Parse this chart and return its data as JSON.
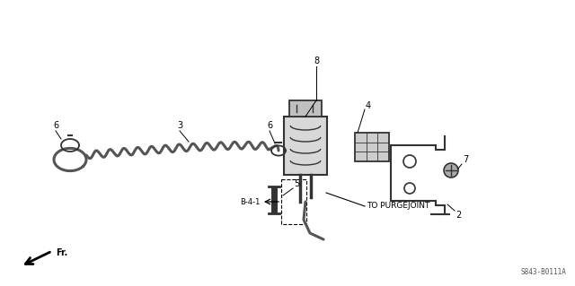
{
  "bg_color": "#ffffff",
  "line_color": "#000000",
  "gray": "#555555",
  "dgray": "#333333",
  "diagram_id": "S843-B0111A",
  "label_fs": 7,
  "small_fs": 6,
  "fr_text": "Fr."
}
